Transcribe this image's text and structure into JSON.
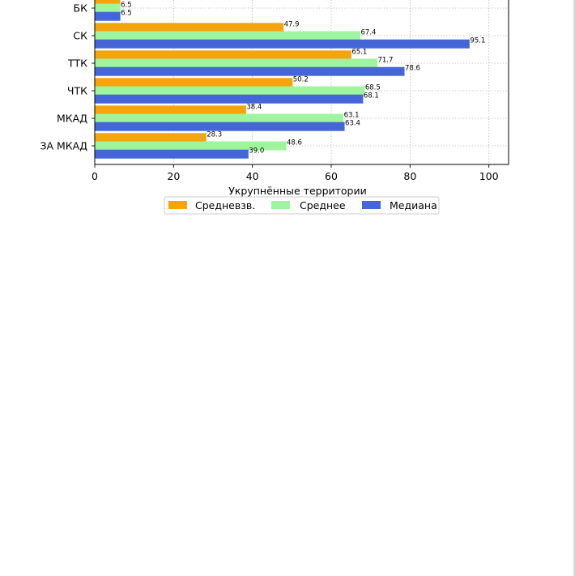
{
  "chart_data": {
    "type": "bar",
    "orientation": "horizontal",
    "categories": [
      "БК",
      "СК",
      "ТТК",
      "ЧТК",
      "МКАД",
      "ЗА МКАД"
    ],
    "series": [
      {
        "name": "Средневзв.",
        "color": "#f5a40c",
        "values": [
          6.5,
          47.9,
          65.1,
          50.2,
          38.4,
          28.3
        ]
      },
      {
        "name": "Среднее",
        "color": "#9ef59e",
        "values": [
          6.5,
          67.4,
          71.7,
          68.5,
          63.1,
          48.6
        ]
      },
      {
        "name": "Медиана",
        "color": "#4466d8",
        "values": [
          6.5,
          95.1,
          78.6,
          68.1,
          63.4,
          39.0
        ]
      }
    ],
    "data_labels": [
      [
        "6.5",
        "47.9",
        "65.1",
        "50.2",
        "38.4",
        "28.3"
      ],
      [
        "6.5",
        "67.4",
        "71.7",
        "68.5",
        "63.1",
        "48.6"
      ],
      [
        "6.5",
        "95.1",
        "78.6",
        "68.1",
        "63.4",
        "39.0"
      ]
    ],
    "xlabel": "Укрупнённые территории",
    "ylabel": "",
    "xlim": [
      0,
      105
    ],
    "xticks": [
      0,
      20,
      40,
      60,
      80,
      100
    ],
    "grid": true,
    "legend_position": "bottom-center"
  }
}
